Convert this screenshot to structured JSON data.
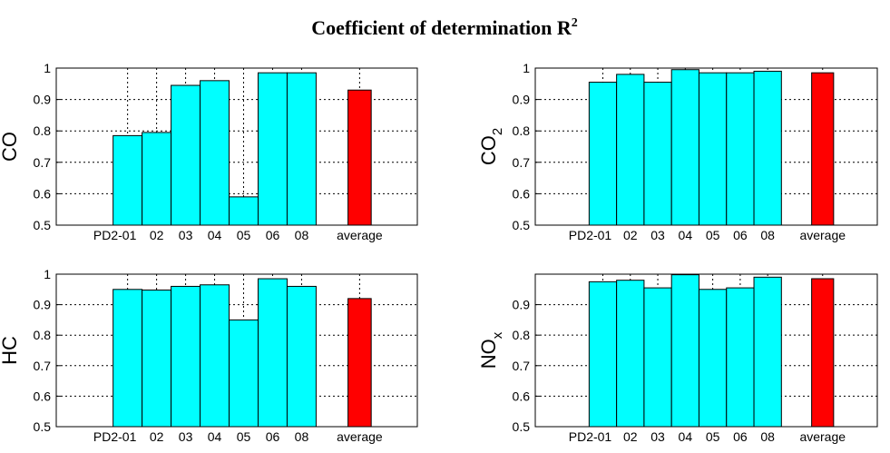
{
  "title": {
    "text": "Coefficient of determination R",
    "sup": "2"
  },
  "chart_data": [
    {
      "type": "bar",
      "ylabel": {
        "text": "CO",
        "sub": ""
      },
      "categories": [
        "PD2-01",
        "02",
        "03",
        "04",
        "05",
        "06",
        "08",
        "average"
      ],
      "values": [
        0.785,
        0.795,
        0.945,
        0.96,
        0.59,
        0.985,
        0.985,
        0.93
      ],
      "colors": [
        "#00ffff",
        "#00ffff",
        "#00ffff",
        "#00ffff",
        "#00ffff",
        "#00ffff",
        "#00ffff",
        "#ff0000"
      ],
      "ylim": [
        0.5,
        1
      ],
      "yticks": [
        0.5,
        0.6,
        0.7,
        0.8,
        0.9,
        1
      ],
      "grid": true
    },
    {
      "type": "bar",
      "ylabel": {
        "text": "CO",
        "sub": "2"
      },
      "categories": [
        "PD2-01",
        "02",
        "03",
        "04",
        "05",
        "06",
        "08",
        "average"
      ],
      "values": [
        0.955,
        0.98,
        0.955,
        0.995,
        0.985,
        0.985,
        0.99,
        0.985
      ],
      "colors": [
        "#00ffff",
        "#00ffff",
        "#00ffff",
        "#00ffff",
        "#00ffff",
        "#00ffff",
        "#00ffff",
        "#ff0000"
      ],
      "ylim": [
        0.5,
        1
      ],
      "yticks": [
        0.5,
        0.6,
        0.7,
        0.8,
        0.9,
        1
      ],
      "grid": true
    },
    {
      "type": "bar",
      "ylabel": {
        "text": "HC",
        "sub": ""
      },
      "categories": [
        "PD2-01",
        "02",
        "03",
        "04",
        "05",
        "06",
        "08",
        "average"
      ],
      "values": [
        0.95,
        0.948,
        0.96,
        0.965,
        0.85,
        0.985,
        0.96,
        0.92
      ],
      "colors": [
        "#00ffff",
        "#00ffff",
        "#00ffff",
        "#00ffff",
        "#00ffff",
        "#00ffff",
        "#00ffff",
        "#ff0000"
      ],
      "ylim": [
        0.5,
        1
      ],
      "yticks": [
        0.5,
        0.6,
        0.7,
        0.8,
        0.9,
        1
      ],
      "grid": true
    },
    {
      "type": "bar",
      "ylabel": {
        "text": "NO",
        "sub": "x"
      },
      "categories": [
        "PD2-01",
        "02",
        "03",
        "04",
        "05",
        "06",
        "08",
        "average"
      ],
      "values": [
        0.975,
        0.98,
        0.955,
        0.998,
        0.95,
        0.955,
        0.99,
        0.985
      ],
      "colors": [
        "#00ffff",
        "#00ffff",
        "#00ffff",
        "#00ffff",
        "#00ffff",
        "#00ffff",
        "#00ffff",
        "#ff0000"
      ],
      "ylim": [
        0.5,
        0.9999
      ],
      "yticks": [
        0.5,
        0.6,
        0.7,
        0.8,
        0.9
      ],
      "grid": true
    }
  ]
}
